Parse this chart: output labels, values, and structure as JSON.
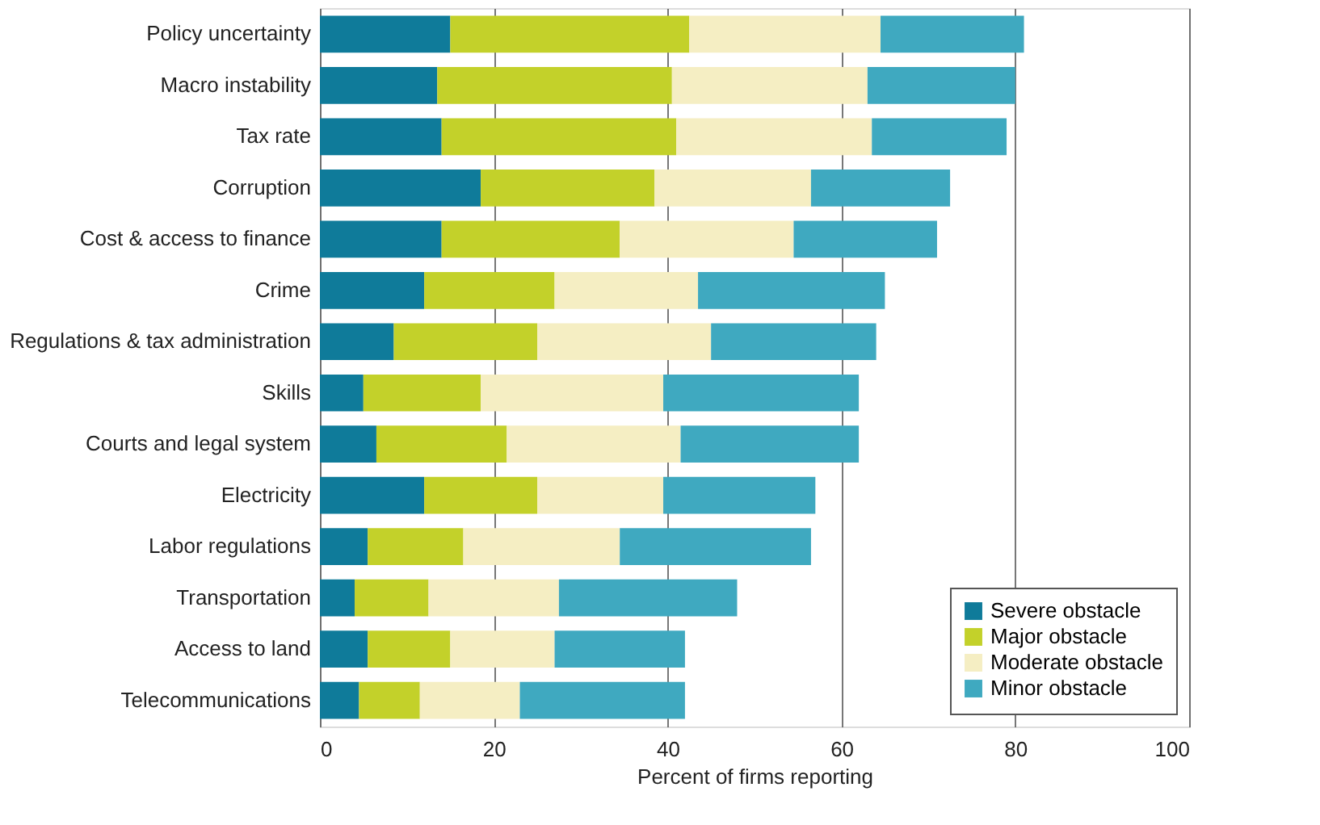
{
  "chart_data": {
    "type": "bar",
    "orientation": "horizontal",
    "stacked": true,
    "categories": [
      "Policy uncertainty",
      "Macro instability",
      "Tax rate",
      "Corruption",
      "Cost & access to finance",
      "Crime",
      "Regulations & tax administration",
      "Skills",
      "Courts and legal system",
      "Electricity",
      "Labor regulations",
      "Transportation",
      "Access to land",
      "Telecommunications"
    ],
    "series": [
      {
        "name": "Severe obstacle",
        "color": "#0f7b9a",
        "values": [
          15,
          13.5,
          14,
          18.5,
          14,
          12,
          8.5,
          5,
          6.5,
          12,
          5.5,
          4,
          5.5,
          4.5
        ]
      },
      {
        "name": "Major obstacle",
        "color": "#c3d12a",
        "values": [
          27.5,
          27,
          27,
          20,
          20.5,
          15,
          16.5,
          13.5,
          15,
          13,
          11,
          8.5,
          9.5,
          7
        ]
      },
      {
        "name": "Moderate obstacle",
        "color": "#f5eec3",
        "values": [
          22,
          22.5,
          22.5,
          18,
          20,
          16.5,
          20,
          21,
          20,
          14.5,
          18,
          15,
          12,
          11.5
        ]
      },
      {
        "name": "Minor obstacle",
        "color": "#3fa9c0",
        "values": [
          16.5,
          17,
          15.5,
          16,
          16.5,
          21.5,
          19,
          22.5,
          20.5,
          17.5,
          22,
          20.5,
          15,
          19
        ]
      }
    ],
    "xlabel": "Percent of firms reporting",
    "xlim": [
      0,
      100
    ],
    "xticks": [
      0,
      20,
      40,
      60,
      80,
      100
    ],
    "grid": "x",
    "legend": "bottom right"
  }
}
